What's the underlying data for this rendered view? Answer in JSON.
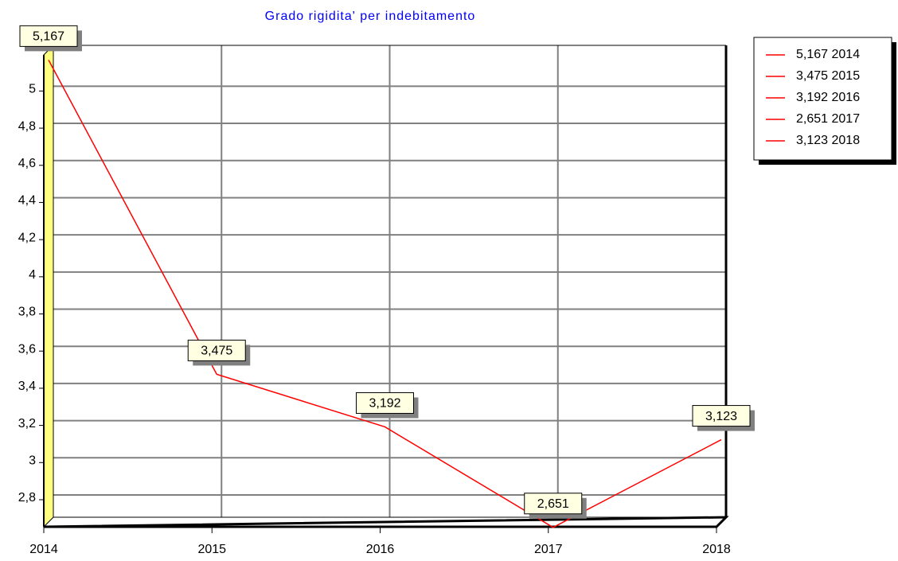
{
  "chart_data": {
    "type": "line",
    "title": "Grado rigidita' per indebitamento",
    "categories": [
      "2014",
      "2015",
      "2016",
      "2017",
      "2018"
    ],
    "series": [
      {
        "name": "Grado rigidita' per indebitamento",
        "color": "#ff0000",
        "values": [
          5.167,
          3.475,
          3.192,
          2.651,
          3.123
        ],
        "value_labels": [
          "5,167",
          "3,475",
          "3,192",
          "2,651",
          "3,123"
        ]
      }
    ],
    "ylim": [
      2.68,
      5.22
    ],
    "yticks": [
      {
        "value": 2.8,
        "label": "2,8"
      },
      3,
      {
        "value": 3.2,
        "label": "3,2"
      },
      {
        "value": 3.4,
        "label": "3,4"
      },
      {
        "value": 3.6,
        "label": "3,6"
      },
      {
        "value": 3.8,
        "label": "3,8"
      },
      4,
      {
        "value": 4.2,
        "label": "4,2"
      },
      {
        "value": 4.4,
        "label": "4,4"
      },
      {
        "value": 4.6,
        "label": "4,6"
      },
      {
        "value": 4.8,
        "label": "4,8"
      },
      5
    ],
    "grid": true
  }
}
